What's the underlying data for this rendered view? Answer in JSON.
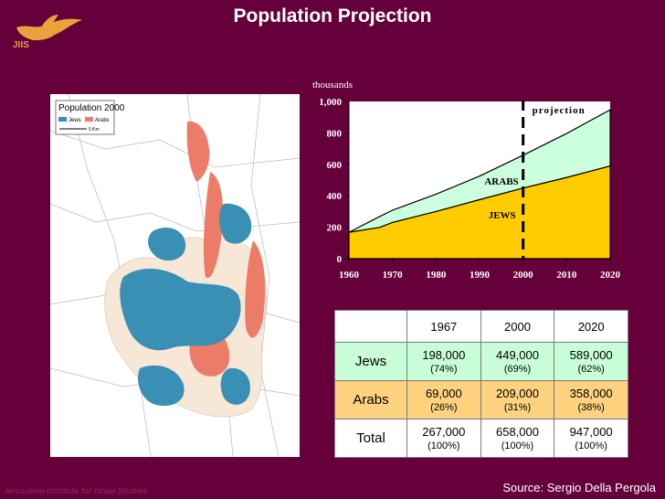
{
  "page": {
    "title": "Population Projection",
    "logo_text": "JIIS",
    "footer_left": "Jerusalem Institute for Israel Studies",
    "source": "Source: Sergio Della Pergola"
  },
  "map": {
    "title": "Population 2000",
    "legend": [
      "Jews",
      "Arabs"
    ],
    "scale": "5 Km",
    "colors": {
      "jews": "#3a8fb5",
      "arabs": "#ec7b68",
      "built": "#f6e7d6"
    }
  },
  "chart_data": {
    "type": "area",
    "ylabel": "thousands",
    "x": [
      1960,
      1967,
      1970,
      1980,
      1990,
      2000,
      2010,
      2020
    ],
    "series": [
      {
        "name": "JEWS",
        "values": [
          168,
          198,
          230,
          300,
          375,
          449,
          516,
          589
        ],
        "color": "#ffcc00"
      },
      {
        "name": "ARABS",
        "values": [
          0,
          69,
          78,
          110,
          150,
          209,
          280,
          358
        ],
        "color": "#ccffdd"
      }
    ],
    "xticks": [
      "1960",
      "1970",
      "1980",
      "1990",
      "2000",
      "2010",
      "2020"
    ],
    "yticks": [
      "0",
      "200",
      "400",
      "600",
      "800",
      "1,000"
    ],
    "xlim": [
      1960,
      2020
    ],
    "ylim": [
      0,
      1000
    ],
    "projection_start": 2000,
    "labels": {
      "projection": "projection",
      "arabs": "ARABS",
      "jews": "JEWS"
    }
  },
  "table": {
    "headers": [
      "",
      "1967",
      "2000",
      "2020"
    ],
    "rows": [
      {
        "label": "Jews",
        "values": [
          "198,000",
          "449,000",
          "589,000"
        ],
        "pcts": [
          "(74%)",
          "(69%)",
          "(62%)"
        ]
      },
      {
        "label": "Arabs",
        "values": [
          "69,000",
          "209,000",
          "358,000"
        ],
        "pcts": [
          "(26%)",
          "(31%)",
          "(38%)"
        ]
      },
      {
        "label": "Total",
        "values": [
          "267,000",
          "658,000",
          "947,000"
        ],
        "pcts": [
          "(100%)",
          "(100%)",
          "(100%)"
        ]
      }
    ]
  }
}
